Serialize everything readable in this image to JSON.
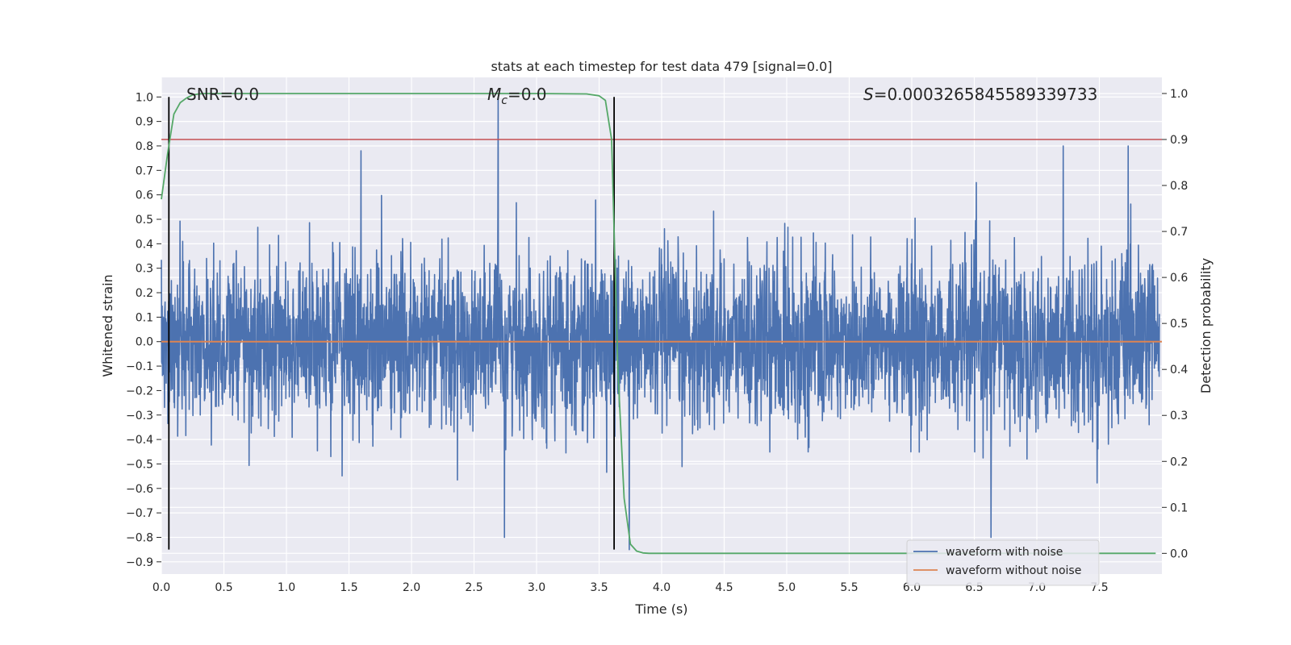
{
  "chart_data": {
    "type": "line",
    "title": "stats at each timestep for test data 479 [signal=0.0]",
    "xlabel": "Time (s)",
    "ylabel": "Whitened strain",
    "y2label": "Detection probability",
    "xlim": [
      0.0,
      8.0
    ],
    "ylim": [
      -0.95,
      1.08
    ],
    "y2lim": [
      -0.045,
      1.035
    ],
    "xticks": [
      "0.0",
      "0.5",
      "1.0",
      "1.5",
      "2.0",
      "2.5",
      "3.0",
      "3.5",
      "4.0",
      "4.5",
      "5.0",
      "5.5",
      "6.0",
      "6.5",
      "7.0",
      "7.5"
    ],
    "yticks": [
      "-0.9",
      "-0.8",
      "-0.7",
      "-0.6",
      "-0.5",
      "-0.4",
      "-0.3",
      "-0.2",
      "-0.1",
      "0.0",
      "0.1",
      "0.2",
      "0.3",
      "0.4",
      "0.5",
      "0.6",
      "0.7",
      "0.8",
      "0.9",
      "1.0"
    ],
    "y2ticks": [
      "0.0",
      "0.1",
      "0.2",
      "0.3",
      "0.4",
      "0.5",
      "0.6",
      "0.7",
      "0.8",
      "0.9",
      "1.0"
    ],
    "grid": true,
    "legend_position": "bottom-right",
    "annotations": {
      "snr": "SNR=0.0",
      "mc_symbol": "M",
      "mc_sub": "c",
      "mc_value": "=0.0",
      "s_symbol": "S",
      "s_value": "=0.0003265845589339733"
    },
    "series": [
      {
        "name": "waveform with noise",
        "color": "#4c72b0",
        "description": "dense random noise, amplitude mostly within ±0.5, peak 1.0 near t=2.7 s, minimum ≈ -0.85 near t=3.75 s",
        "peaks": [
          [
            2.7,
            1.0
          ],
          [
            1.6,
            0.78
          ],
          [
            7.23,
            0.8
          ],
          [
            7.75,
            0.8
          ],
          [
            3.75,
            -0.85
          ],
          [
            2.75,
            -0.8
          ],
          [
            6.65,
            -0.8
          ]
        ]
      },
      {
        "name": "waveform without noise",
        "color": "#dd8452",
        "x": [
          0.0,
          8.0
        ],
        "y": [
          0.0,
          0.0
        ]
      },
      {
        "name": "detection probability",
        "axis": "right",
        "color": "#55a868",
        "x": [
          0.0,
          0.05,
          0.1,
          0.15,
          0.2,
          0.25,
          0.3,
          0.35,
          0.4,
          0.6,
          1.0,
          2.0,
          3.0,
          3.4,
          3.5,
          3.55,
          3.6,
          3.65,
          3.7,
          3.75,
          3.8,
          3.85,
          3.9,
          4.0,
          5.0,
          6.0,
          7.0,
          7.95
        ],
        "y": [
          0.77,
          0.87,
          0.955,
          0.98,
          0.99,
          0.997,
          0.999,
          1.0,
          1.0,
          1.0,
          1.0,
          1.0,
          1.0,
          0.999,
          0.995,
          0.985,
          0.9,
          0.4,
          0.12,
          0.02,
          0.005,
          0.001,
          0.0,
          0.0,
          0.0,
          0.0,
          0.0,
          0.0
        ]
      }
    ],
    "threshold": {
      "value": 0.9,
      "axis": "right",
      "color": "#c44e52"
    },
    "vlines": {
      "x": [
        0.06,
        3.62
      ],
      "color": "#000000"
    }
  }
}
